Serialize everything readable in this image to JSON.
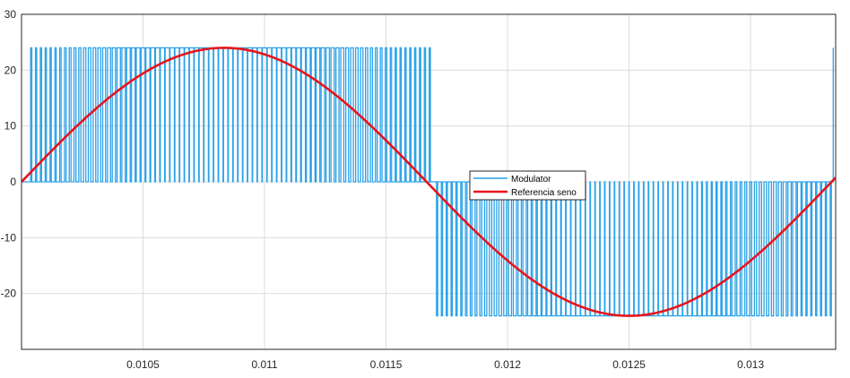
{
  "chart_data": {
    "type": "line",
    "title": "",
    "xlabel": "",
    "ylabel": "",
    "xlim": [
      0.01,
      0.01335
    ],
    "ylim": [
      -30,
      30
    ],
    "grid": true,
    "legend_position": "center",
    "x_ticks": [
      0.0105,
      0.011,
      0.0115,
      0.012,
      0.0125,
      0.013
    ],
    "x_tick_labels": [
      "0.0105",
      "0.011",
      "0.0115",
      "0.012",
      "0.0125",
      "0.013"
    ],
    "y_ticks": [
      30,
      20,
      10,
      0,
      -10,
      -20
    ],
    "y_tick_labels": [
      "30",
      "20",
      "10",
      "0",
      "-10",
      "-20"
    ],
    "series": [
      {
        "name": "Modulator",
        "color": "#2aa1e8",
        "kind": "unipolar-pwm",
        "amplitude": 24,
        "switching_frequency_hz": 50000,
        "positive_pulses_x_range": [
          0.01003,
          0.011685
        ],
        "negative_pulses_x_range": [
          0.0117,
          0.013335
        ],
        "final_edge_x": 0.01334
      },
      {
        "name": "Referencia seno",
        "color": "#e8141b",
        "kind": "sine",
        "amplitude": 24,
        "frequency_hz": 300,
        "zero_crossings_x": [
          0.01,
          0.011667,
          0.013333
        ]
      }
    ]
  }
}
